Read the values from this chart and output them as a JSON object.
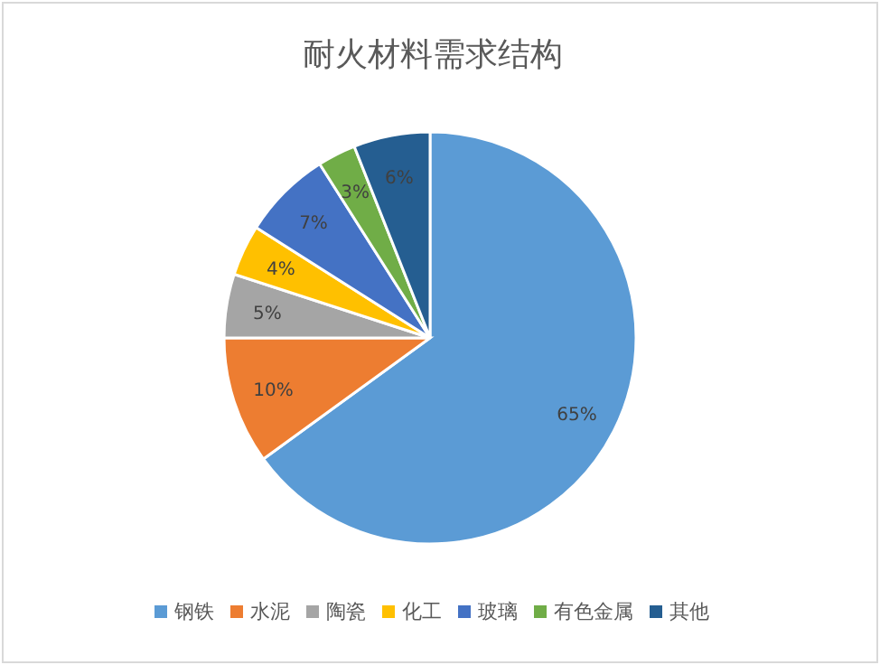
{
  "chart_data": {
    "type": "pie",
    "title": "耐火材料需求结构",
    "categories": [
      "钢铁",
      "水泥",
      "陶瓷",
      "化工",
      "玻璃",
      "有色金属",
      "其他"
    ],
    "values": [
      65,
      10,
      5,
      4,
      7,
      3,
      6
    ],
    "colors": [
      "#5b9bd5",
      "#ed7d31",
      "#a5a5a5",
      "#ffc000",
      "#4472c4",
      "#70ad47",
      "#255e91"
    ],
    "value_labels": [
      "65%",
      "10%",
      "5%",
      "4%",
      "7%",
      "3%",
      "6%"
    ],
    "legend": "bottom"
  }
}
